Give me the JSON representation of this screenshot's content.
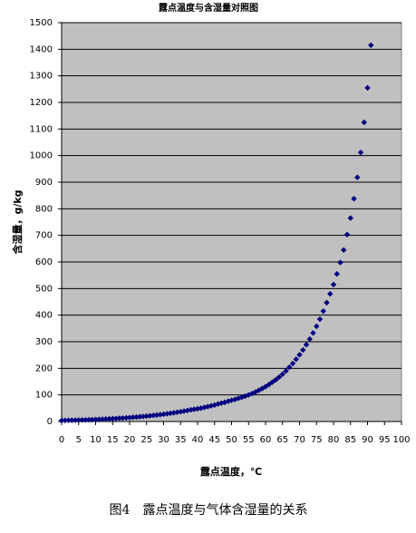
{
  "chart_data": {
    "type": "scatter",
    "title": "露点温度与含湿量对照图",
    "x_label": "露点温度，℃",
    "y_label": "含湿量，g/kg",
    "x": [
      0,
      1,
      2,
      3,
      4,
      5,
      6,
      7,
      8,
      9,
      10,
      11,
      12,
      13,
      14,
      15,
      16,
      17,
      18,
      19,
      20,
      21,
      22,
      23,
      24,
      25,
      26,
      27,
      28,
      29,
      30,
      31,
      32,
      33,
      34,
      35,
      36,
      37,
      38,
      39,
      40,
      41,
      42,
      43,
      44,
      45,
      46,
      47,
      48,
      49,
      50,
      51,
      52,
      53,
      54,
      55,
      56,
      57,
      58,
      59,
      60,
      61,
      62,
      63,
      64,
      65,
      66,
      67,
      68,
      69,
      70,
      71,
      72,
      73,
      74,
      75,
      76,
      77,
      78,
      79,
      80,
      81,
      82,
      83,
      84,
      85,
      86,
      87,
      88,
      89,
      90,
      91
    ],
    "values": [
      3.8,
      4.1,
      4.4,
      4.7,
      5.0,
      5.4,
      5.8,
      6.2,
      6.7,
      7.1,
      7.6,
      8.2,
      8.8,
      9.4,
      10.0,
      10.7,
      11.4,
      12.2,
      13.0,
      13.9,
      14.8,
      15.8,
      16.8,
      17.9,
      19.0,
      20.2,
      21.5,
      22.9,
      24.3,
      25.8,
      27.4,
      29.1,
      30.9,
      32.8,
      34.8,
      36.9,
      39.1,
      41.4,
      43.9,
      46,
      48,
      50,
      53,
      56,
      59,
      62,
      66,
      69,
      72,
      76,
      80,
      83,
      87,
      91,
      95,
      100,
      105,
      111,
      117,
      124,
      131,
      139,
      148,
      157,
      167,
      178,
      190,
      204,
      218,
      234,
      251,
      269,
      289,
      310,
      333,
      358,
      385,
      415,
      447,
      480,
      515,
      555,
      598,
      645,
      703,
      765,
      838,
      918,
      1012,
      1125,
      1255,
      1415
    ],
    "color": "#000080",
    "xlim": [
      0,
      100
    ],
    "xticks": [
      0,
      5,
      10,
      15,
      20,
      25,
      30,
      35,
      40,
      45,
      50,
      55,
      60,
      65,
      70,
      75,
      80,
      85,
      90,
      95,
      100
    ],
    "ylim": [
      0,
      1500
    ],
    "yticks": [
      0,
      100,
      200,
      300,
      400,
      500,
      600,
      700,
      800,
      900,
      1000,
      1100,
      1200,
      1300,
      1400,
      1500
    ],
    "grid": true,
    "caption": "图4　露点温度与气体含湿量的关系"
  }
}
